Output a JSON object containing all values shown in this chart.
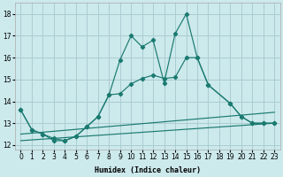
{
  "xlabel": "Humidex (Indice chaleur)",
  "background_color": "#cce9ec",
  "grid_color": "#aacdd2",
  "line_color": "#1a7a70",
  "xlim": [
    -0.5,
    23.5
  ],
  "ylim": [
    11.8,
    18.5
  ],
  "yticks": [
    12,
    13,
    14,
    15,
    16,
    17,
    18
  ],
  "xticks": [
    0,
    1,
    2,
    3,
    4,
    5,
    6,
    7,
    8,
    9,
    10,
    11,
    12,
    13,
    14,
    15,
    16,
    17,
    18,
    19,
    20,
    21,
    22,
    23
  ],
  "line1_x": [
    0,
    1,
    2,
    3,
    4,
    5,
    6,
    7,
    8,
    9,
    10,
    11,
    12,
    13,
    14,
    15,
    16,
    17,
    19,
    20,
    21,
    22,
    23
  ],
  "line1_y": [
    13.6,
    12.7,
    12.5,
    12.3,
    12.2,
    12.4,
    12.85,
    13.3,
    14.3,
    15.9,
    17.0,
    16.5,
    16.8,
    14.85,
    17.1,
    18.0,
    16.0,
    14.75,
    13.9,
    13.3,
    13.0,
    13.0,
    13.0
  ],
  "line2_x": [
    0,
    1,
    2,
    3,
    4,
    5,
    6,
    7,
    8,
    9,
    10,
    11,
    12,
    13,
    14,
    15,
    16,
    17,
    19,
    20,
    21,
    22,
    23
  ],
  "line2_y": [
    13.6,
    12.7,
    12.5,
    12.2,
    12.2,
    12.4,
    12.85,
    13.3,
    14.3,
    14.35,
    14.8,
    15.05,
    15.2,
    15.05,
    15.1,
    16.0,
    16.0,
    14.75,
    13.9,
    13.3,
    13.0,
    13.0,
    13.0
  ],
  "line3_x": [
    0,
    23
  ],
  "line3_y": [
    12.5,
    13.5
  ],
  "line4_x": [
    0,
    23
  ],
  "line4_y": [
    12.2,
    13.0
  ]
}
